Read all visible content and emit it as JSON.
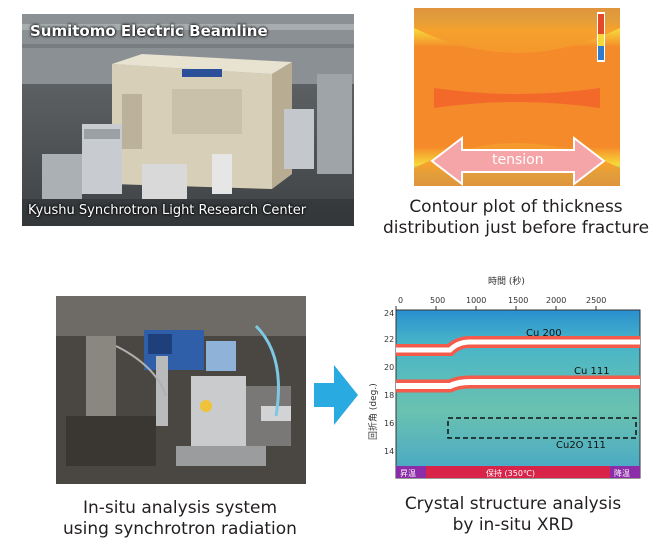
{
  "beamline_photo": {
    "top_label": "Sumitomo Electric Beamline",
    "bottom_label": "Kyushu Synchrotron Light Research Center"
  },
  "contour_plot": {
    "arrow_label": "tension",
    "caption_line1": "Contour plot of thickness",
    "caption_line2": "distribution just before fracture"
  },
  "insitu_photo": {
    "caption_line1": "In-situ analysis system",
    "caption_line2": "using synchrotron radiation"
  },
  "xrd_plot": {
    "x_axis_title": "時間 (秒)",
    "x_ticks": [
      "0",
      "500",
      "1000",
      "1500",
      "2000",
      "2500"
    ],
    "y_axis_title": "回折角 (deg.)",
    "y_ticks": [
      "24",
      "22",
      "20",
      "18",
      "16",
      "14"
    ],
    "peak_labels": [
      "Cu 200",
      "Cu 111",
      "Cu2O 111"
    ],
    "phase_labels": [
      "昇温",
      "保持 (350℃)",
      "降温"
    ],
    "caption_line1": "Crystal structure analysis",
    "caption_line2": "by in-situ XRD"
  },
  "arrow": {
    "color": "#29abe2"
  }
}
